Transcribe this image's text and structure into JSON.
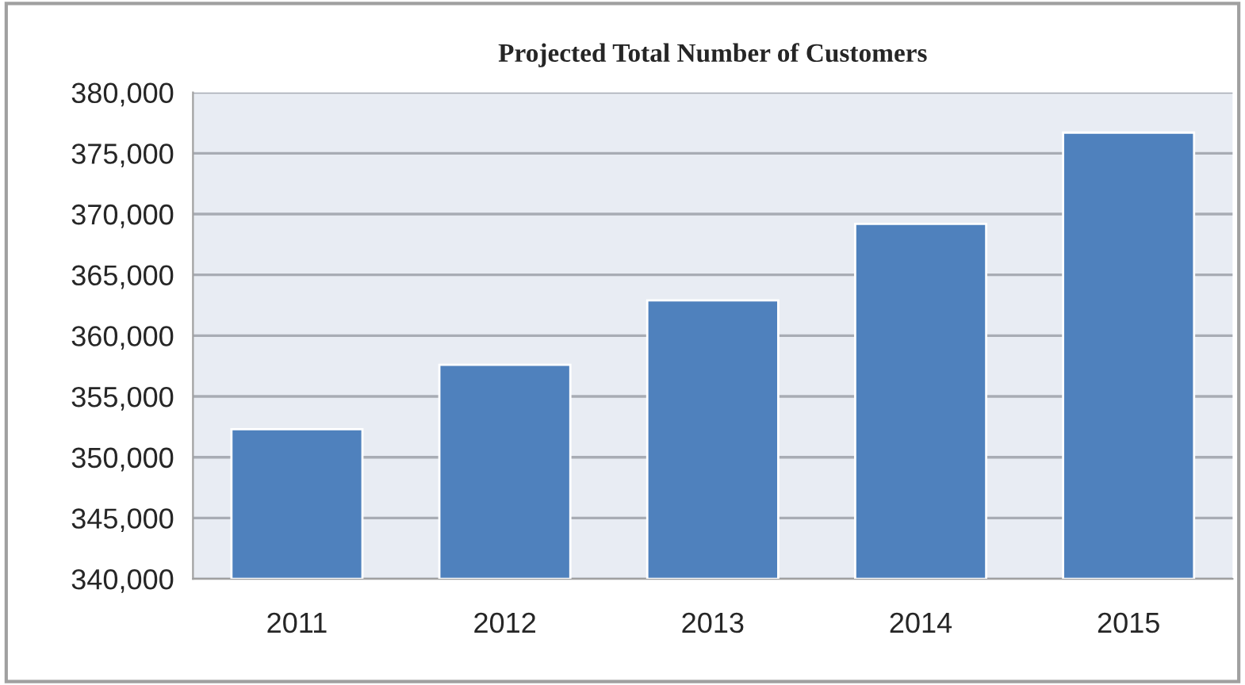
{
  "chart_data": {
    "type": "bar",
    "title": "Projected Total Number of Customers",
    "categories": [
      "2011",
      "2012",
      "2013",
      "2014",
      "2015"
    ],
    "values": [
      352300,
      357600,
      362900,
      369200,
      376700
    ],
    "color": "#4f81bd",
    "ylim": [
      340000,
      380000
    ],
    "yticks": [
      {
        "value": 340000,
        "label": "340,000"
      },
      {
        "value": 345000,
        "label": "345,000"
      },
      {
        "value": 350000,
        "label": "350,000"
      },
      {
        "value": 355000,
        "label": "355,000"
      },
      {
        "value": 360000,
        "label": "360,000"
      },
      {
        "value": 365000,
        "label": "365,000"
      },
      {
        "value": 370000,
        "label": "370,000"
      },
      {
        "value": 375000,
        "label": "375,000"
      },
      {
        "value": 380000,
        "label": "380,000"
      }
    ],
    "grid": "y",
    "legend": false
  }
}
